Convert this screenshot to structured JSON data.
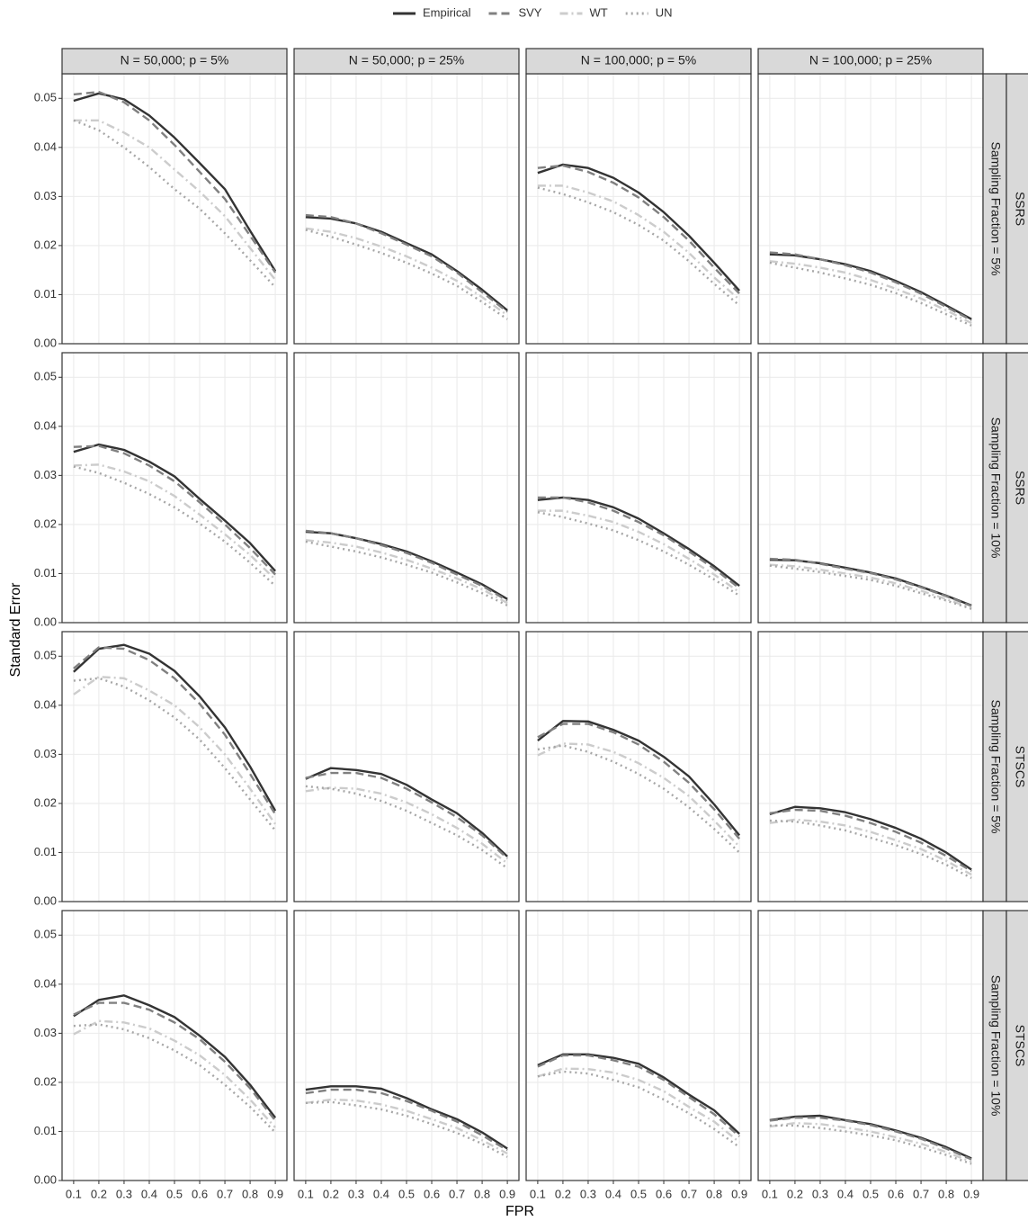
{
  "chart_data": {
    "type": "line",
    "xlabel": "FPR",
    "ylabel": "Standard Error",
    "grid": true,
    "x": [
      0.1,
      0.2,
      0.3,
      0.4,
      0.5,
      0.6,
      0.7,
      0.8,
      0.9
    ],
    "xlim": [
      0.054,
      0.946
    ],
    "xticks": [
      0.1,
      0.2,
      0.3,
      0.4,
      0.5,
      0.6,
      0.7,
      0.8,
      0.9
    ],
    "ylim": [
      0,
      0.055
    ],
    "yticks": [
      {
        "value": 0,
        "label": "0.00"
      },
      0.01,
      0.02,
      0.03,
      0.04,
      0.05
    ],
    "legend_position": "top",
    "series": [
      {
        "name": "Empirical",
        "color": "#333333",
        "dash": "solid"
      },
      {
        "name": "SVY",
        "color": "#808080",
        "dash": "dashed"
      },
      {
        "name": "WT",
        "color": "#cccccc",
        "dash": "dotdash"
      },
      {
        "name": "UN",
        "color": "#a6a6a6",
        "dash": "dotted"
      }
    ],
    "columns": [
      "N = 50,000; p = 5%",
      "N = 50,000; p = 25%",
      "N = 100,000; p = 5%",
      "N = 100,000; p = 25%"
    ],
    "rows": [
      {
        "group": "SSRS",
        "label": "Sampling Fraction = 5%"
      },
      {
        "group": "SSRS",
        "label": "Sampling Fraction = 10%"
      },
      {
        "group": "STSCS",
        "label": "Sampling Fraction = 5%"
      },
      {
        "group": "STSCS",
        "label": "Sampling Fraction = 10%"
      }
    ],
    "panels": [
      [
        [
          [
            0.0495,
            0.051,
            0.0498,
            0.0465,
            0.042,
            0.0368,
            0.0315,
            0.023,
            0.0148
          ],
          [
            0.0508,
            0.0513,
            0.0492,
            0.0455,
            0.0405,
            0.035,
            0.0295,
            0.022,
            0.0145
          ],
          [
            0.0455,
            0.0455,
            0.043,
            0.04,
            0.0355,
            0.031,
            0.026,
            0.0195,
            0.013
          ],
          [
            0.0455,
            0.0435,
            0.04,
            0.036,
            0.0315,
            0.0275,
            0.0225,
            0.017,
            0.0115
          ]
        ],
        [
          [
            0.0258,
            0.0255,
            0.0245,
            0.0228,
            0.0205,
            0.0182,
            0.0148,
            0.011,
            0.0068
          ],
          [
            0.0262,
            0.0258,
            0.0245,
            0.0225,
            0.0202,
            0.0178,
            0.0145,
            0.0105,
            0.0065
          ],
          [
            0.0235,
            0.0228,
            0.0215,
            0.0198,
            0.0178,
            0.0155,
            0.0128,
            0.0095,
            0.0058
          ],
          [
            0.0232,
            0.0218,
            0.0202,
            0.0185,
            0.0165,
            0.0143,
            0.0118,
            0.0085,
            0.005
          ]
        ],
        [
          [
            0.0348,
            0.0365,
            0.0358,
            0.0338,
            0.0308,
            0.0268,
            0.022,
            0.0165,
            0.0108
          ],
          [
            0.0358,
            0.0363,
            0.035,
            0.0328,
            0.0298,
            0.0258,
            0.021,
            0.0155,
            0.0102
          ],
          [
            0.0322,
            0.0322,
            0.0308,
            0.029,
            0.0262,
            0.0228,
            0.0185,
            0.0135,
            0.009
          ],
          [
            0.0318,
            0.0305,
            0.0288,
            0.0268,
            0.0242,
            0.021,
            0.0168,
            0.0122,
            0.0078
          ]
        ],
        [
          [
            0.0182,
            0.018,
            0.0172,
            0.0162,
            0.0148,
            0.0128,
            0.0105,
            0.0078,
            0.005
          ],
          [
            0.0186,
            0.0182,
            0.0172,
            0.016,
            0.0145,
            0.0125,
            0.0102,
            0.0075,
            0.0048
          ],
          [
            0.0168,
            0.0163,
            0.0155,
            0.0145,
            0.013,
            0.0112,
            0.0092,
            0.0068,
            0.0042
          ],
          [
            0.0165,
            0.0155,
            0.0145,
            0.0133,
            0.012,
            0.0103,
            0.0083,
            0.006,
            0.0037
          ]
        ]
      ],
      [
        [
          [
            0.0348,
            0.0363,
            0.0352,
            0.0328,
            0.0298,
            0.0252,
            0.0208,
            0.0162,
            0.0105
          ],
          [
            0.0358,
            0.036,
            0.0345,
            0.032,
            0.0288,
            0.0245,
            0.02,
            0.0152,
            0.0098
          ],
          [
            0.032,
            0.0322,
            0.0308,
            0.0288,
            0.0258,
            0.022,
            0.018,
            0.0138,
            0.0088
          ],
          [
            0.0318,
            0.0305,
            0.0285,
            0.0262,
            0.0235,
            0.0202,
            0.0165,
            0.0122,
            0.0075
          ]
        ],
        [
          [
            0.0185,
            0.0182,
            0.0172,
            0.016,
            0.0145,
            0.0125,
            0.0102,
            0.0078,
            0.0048
          ],
          [
            0.0187,
            0.0182,
            0.0172,
            0.0158,
            0.0142,
            0.0122,
            0.0098,
            0.0075,
            0.0045
          ],
          [
            0.0168,
            0.0163,
            0.0155,
            0.0143,
            0.0128,
            0.011,
            0.009,
            0.0068,
            0.004
          ],
          [
            0.0165,
            0.0155,
            0.0145,
            0.0133,
            0.0118,
            0.0102,
            0.0082,
            0.006,
            0.0035
          ]
        ],
        [
          [
            0.025,
            0.0255,
            0.025,
            0.0235,
            0.0212,
            0.0182,
            0.015,
            0.0115,
            0.0075
          ],
          [
            0.0255,
            0.0255,
            0.0245,
            0.0228,
            0.0205,
            0.0178,
            0.0145,
            0.011,
            0.007
          ],
          [
            0.0228,
            0.0228,
            0.0218,
            0.0205,
            0.0185,
            0.016,
            0.013,
            0.0098,
            0.0062
          ],
          [
            0.0225,
            0.0215,
            0.0202,
            0.0188,
            0.0168,
            0.0145,
            0.0118,
            0.0088,
            0.0055
          ]
        ],
        [
          [
            0.0128,
            0.0127,
            0.0121,
            0.0112,
            0.0102,
            0.009,
            0.0073,
            0.0055,
            0.0035
          ],
          [
            0.013,
            0.0128,
            0.012,
            0.011,
            0.0101,
            0.0088,
            0.0072,
            0.0054,
            0.0034
          ],
          [
            0.0118,
            0.0115,
            0.0108,
            0.01,
            0.0092,
            0.008,
            0.0065,
            0.0048,
            0.003
          ],
          [
            0.0116,
            0.011,
            0.0103,
            0.0095,
            0.0087,
            0.0075,
            0.006,
            0.0045,
            0.0028
          ]
        ]
      ],
      [
        [
          [
            0.0468,
            0.0515,
            0.0523,
            0.0505,
            0.047,
            0.0418,
            0.0355,
            0.0275,
            0.0185
          ],
          [
            0.0475,
            0.0518,
            0.0515,
            0.0492,
            0.0455,
            0.0403,
            0.034,
            0.026,
            0.0178
          ],
          [
            0.0422,
            0.0458,
            0.0455,
            0.043,
            0.04,
            0.0355,
            0.03,
            0.023,
            0.0158
          ],
          [
            0.045,
            0.0455,
            0.0438,
            0.041,
            0.0375,
            0.033,
            0.0272,
            0.0208,
            0.0145
          ]
        ],
        [
          [
            0.025,
            0.0272,
            0.0268,
            0.026,
            0.0238,
            0.0208,
            0.018,
            0.014,
            0.0092
          ],
          [
            0.0252,
            0.0262,
            0.0262,
            0.0252,
            0.023,
            0.0202,
            0.0172,
            0.0135,
            0.0088
          ],
          [
            0.0225,
            0.0232,
            0.023,
            0.022,
            0.0202,
            0.0178,
            0.015,
            0.0118,
            0.0078
          ],
          [
            0.0235,
            0.023,
            0.022,
            0.0205,
            0.0185,
            0.016,
            0.0135,
            0.0105,
            0.0068
          ]
        ],
        [
          [
            0.0328,
            0.0368,
            0.0367,
            0.035,
            0.0328,
            0.0295,
            0.0255,
            0.0198,
            0.0135
          ],
          [
            0.0335,
            0.0362,
            0.0362,
            0.0345,
            0.032,
            0.0285,
            0.0242,
            0.0188,
            0.0128
          ],
          [
            0.0298,
            0.0322,
            0.032,
            0.0305,
            0.0282,
            0.0252,
            0.0215,
            0.0165,
            0.0112
          ],
          [
            0.031,
            0.0318,
            0.0305,
            0.0285,
            0.026,
            0.023,
            0.0192,
            0.0148,
            0.01
          ]
        ],
        [
          [
            0.0178,
            0.0193,
            0.019,
            0.0182,
            0.0168,
            0.015,
            0.0128,
            0.01,
            0.0065
          ],
          [
            0.018,
            0.0187,
            0.0185,
            0.0175,
            0.016,
            0.0142,
            0.012,
            0.0093,
            0.0062
          ],
          [
            0.016,
            0.0167,
            0.0163,
            0.0155,
            0.0142,
            0.0125,
            0.0107,
            0.0083,
            0.0055
          ],
          [
            0.0165,
            0.0163,
            0.0155,
            0.0145,
            0.013,
            0.0115,
            0.0097,
            0.0075,
            0.0048
          ]
        ]
      ],
      [
        [
          [
            0.0335,
            0.0368,
            0.0377,
            0.0357,
            0.0333,
            0.0295,
            0.0252,
            0.0195,
            0.0128
          ],
          [
            0.0338,
            0.0362,
            0.0362,
            0.0348,
            0.0322,
            0.0288,
            0.0242,
            0.0188,
            0.0122
          ],
          [
            0.0298,
            0.0325,
            0.0322,
            0.031,
            0.0285,
            0.0255,
            0.0215,
            0.0165,
            0.0108
          ],
          [
            0.0315,
            0.0318,
            0.0308,
            0.029,
            0.0265,
            0.0235,
            0.0195,
            0.015,
            0.0098
          ]
        ],
        [
          [
            0.0185,
            0.0192,
            0.0192,
            0.0187,
            0.0168,
            0.0145,
            0.0125,
            0.0098,
            0.0065
          ],
          [
            0.0178,
            0.0185,
            0.0185,
            0.0178,
            0.0162,
            0.0142,
            0.012,
            0.0092,
            0.0062
          ],
          [
            0.0158,
            0.0165,
            0.0163,
            0.0155,
            0.0142,
            0.0125,
            0.0107,
            0.0082,
            0.0055
          ],
          [
            0.0158,
            0.016,
            0.0153,
            0.0145,
            0.0132,
            0.0115,
            0.0097,
            0.0075,
            0.0048
          ]
        ],
        [
          [
            0.0235,
            0.0257,
            0.0257,
            0.025,
            0.0238,
            0.021,
            0.0175,
            0.0143,
            0.0095
          ],
          [
            0.0232,
            0.0255,
            0.0255,
            0.0245,
            0.0232,
            0.0205,
            0.017,
            0.0135,
            0.009
          ],
          [
            0.0212,
            0.0228,
            0.0227,
            0.022,
            0.0205,
            0.0182,
            0.015,
            0.012,
            0.0078
          ],
          [
            0.0212,
            0.0222,
            0.0218,
            0.0205,
            0.019,
            0.0165,
            0.0137,
            0.0105,
            0.0068
          ]
        ],
        [
          [
            0.0123,
            0.013,
            0.0132,
            0.0123,
            0.0115,
            0.0102,
            0.0087,
            0.0068,
            0.0045
          ],
          [
            0.0122,
            0.0128,
            0.0128,
            0.0122,
            0.0113,
            0.01,
            0.0085,
            0.0065,
            0.0043
          ],
          [
            0.011,
            0.0117,
            0.0115,
            0.0108,
            0.01,
            0.0088,
            0.0075,
            0.0058,
            0.0038
          ],
          [
            0.0112,
            0.0112,
            0.0107,
            0.01,
            0.0092,
            0.0082,
            0.0068,
            0.0052,
            0.0034
          ]
        ]
      ]
    ]
  }
}
